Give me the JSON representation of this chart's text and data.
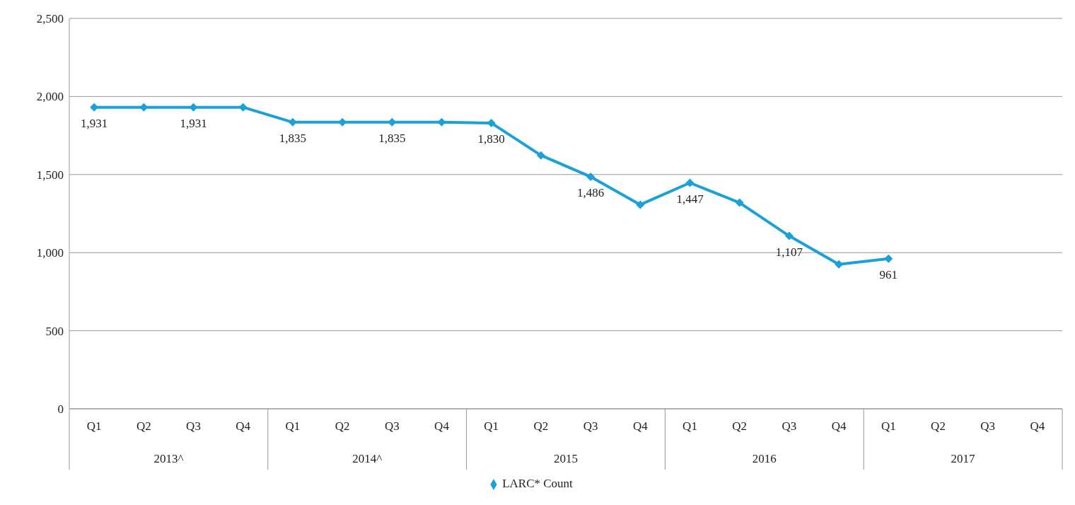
{
  "chart_data": {
    "type": "line",
    "categories": [
      "Q1",
      "Q2",
      "Q3",
      "Q4",
      "Q1",
      "Q2",
      "Q3",
      "Q4",
      "Q1",
      "Q2",
      "Q3",
      "Q4",
      "Q1",
      "Q2",
      "Q3",
      "Q4",
      "Q1",
      "Q2",
      "Q3",
      "Q4"
    ],
    "series": [
      {
        "name": "LARC* Count",
        "color": "#1ba1d8",
        "values": [
          1931,
          1931,
          1931,
          1931,
          1835,
          1835,
          1835,
          1835,
          1830,
          1623,
          1486,
          1307,
          1447,
          1320,
          1107,
          925,
          961,
          null,
          null,
          null
        ],
        "value_labels": [
          "1,931",
          null,
          "1,931",
          null,
          "1,835",
          null,
          "1,835",
          null,
          "1,830",
          null,
          "1,486",
          null,
          "1,447",
          null,
          "1,107",
          null,
          "961",
          null,
          null,
          null
        ]
      }
    ],
    "annotations": [
      "2013^",
      "2014^",
      "2015",
      "2016",
      "2017"
    ],
    "ylim": [
      0,
      2500
    ],
    "yticks": [
      0,
      {
        "value": 500,
        "label": "500"
      },
      {
        "value": 1000,
        "label": "1,000"
      },
      {
        "value": 1500,
        "label": "1,500"
      },
      {
        "value": 2000,
        "label": "2,000"
      },
      {
        "value": 2500,
        "label": "2,500"
      }
    ],
    "grid": "y",
    "legend": "bottom",
    "marker": "diamond",
    "line_style": "solid"
  }
}
